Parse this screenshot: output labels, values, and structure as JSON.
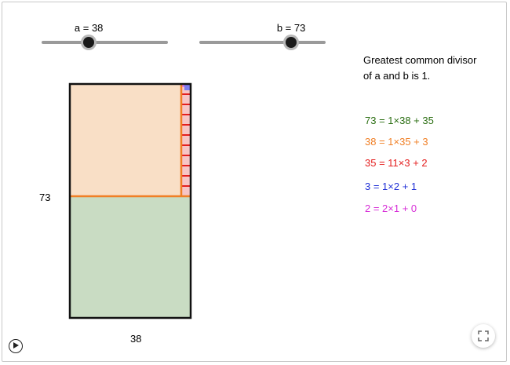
{
  "sliders": {
    "a": {
      "label": "a = 38",
      "value": 38,
      "min": 1,
      "max": 100
    },
    "b": {
      "label": "b = 73",
      "value": 73,
      "min": 1,
      "max": 100
    }
  },
  "message": {
    "line1": "Greatest common divisor",
    "line2": "of a and b is 1."
  },
  "equations": [
    {
      "text": "73 = 1×38 + 35",
      "color": "#2b6e12"
    },
    {
      "text": "38 = 1×35 + 3",
      "color": "#f07f25"
    },
    {
      "text": "35 = 11×3 + 2",
      "color": "#e41f1f"
    },
    {
      "text": "3 = 1×2 + 1",
      "color": "#1f2fd6"
    },
    {
      "text": "2 = 2×1 + 0",
      "color": "#d62bd6"
    }
  ],
  "rectangle": {
    "side_label_height": "73",
    "side_label_width": "38",
    "colors": {
      "green_fill": "#c9dcc3",
      "orange_fill": "#f9dfc6",
      "orange_line": "#f07f25",
      "red_line": "#e41f1f",
      "pink_fill": "#f7c5c5",
      "blue_fill": "#7d7df0",
      "magenta_fill": "#e07be0"
    }
  },
  "controls": {
    "play_icon": "play-icon",
    "fullscreen_icon": "fullscreen-icon"
  }
}
